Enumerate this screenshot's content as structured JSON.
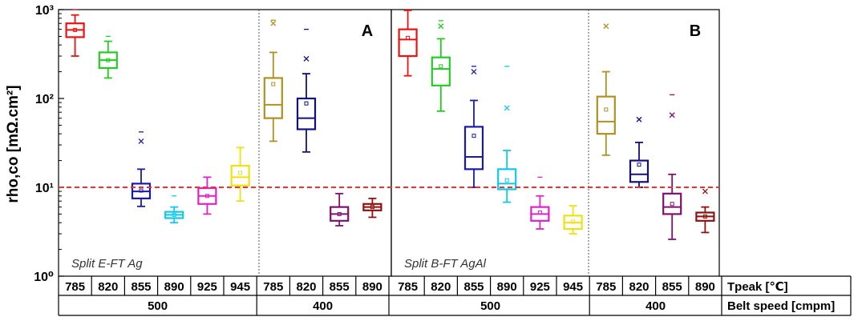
{
  "chart_data": {
    "type": "box",
    "ylabel": "rho,co [mΩ.cm²]",
    "yscale": "log",
    "ylim": [
      1,
      1000
    ],
    "y_ticks": [
      {
        "value": 1,
        "label": "10⁰"
      },
      {
        "value": 10,
        "label": "10¹"
      },
      {
        "value": 100,
        "label": "10²"
      },
      {
        "value": 1000,
        "label": "10³"
      }
    ],
    "reference_line": {
      "value": 10,
      "color": "#ff2a2a",
      "style": "dashed"
    },
    "row_labels": {
      "tpeak": "Tpeak [℃]",
      "belt_speed": "Belt speed [cmpm]"
    },
    "panels": [
      {
        "id": "A",
        "tag": "A",
        "split_label": "Split E-FT Ag",
        "belt_speed_groups": [
          {
            "label": "500",
            "count": 6
          },
          {
            "label": "400",
            "count": 4
          }
        ],
        "boxes": [
          {
            "tpeak": "785",
            "color": "#ee1111",
            "min": 300,
            "q1": 490,
            "median": 590,
            "q3": 700,
            "max": 870,
            "mean": 590,
            "outliers_x": [],
            "outliers_dash": [
              1000
            ]
          },
          {
            "tpeak": "820",
            "color": "#22cc22",
            "min": 170,
            "q1": 220,
            "median": 270,
            "q3": 330,
            "max": 440,
            "mean": 270,
            "outliers_x": [],
            "outliers_dash": [
              500
            ]
          },
          {
            "tpeak": "855",
            "color": "#1a1aaa",
            "min": 6.1,
            "q1": 7.5,
            "median": 9.0,
            "q3": 11.0,
            "max": 16.0,
            "mean": 9.2,
            "outliers_x": [
              33
            ],
            "outliers_dash": [
              42
            ]
          },
          {
            "tpeak": "890",
            "color": "#11c8e8",
            "min": 4.0,
            "q1": 4.5,
            "median": 4.9,
            "q3": 5.3,
            "max": 6.0,
            "mean": 4.9,
            "outliers_x": [],
            "outliers_dash": [
              8.0
            ]
          },
          {
            "tpeak": "925",
            "color": "#e020c8",
            "min": 5.0,
            "q1": 6.5,
            "median": 8.0,
            "q3": 9.8,
            "max": 13.0,
            "mean": 8.0,
            "outliers_x": [],
            "outliers_dash": []
          },
          {
            "tpeak": "945",
            "color": "#f0e010",
            "min": 7.0,
            "q1": 10.5,
            "median": 13.0,
            "q3": 17.5,
            "max": 28.0,
            "mean": 14.5,
            "outliers_x": [],
            "outliers_dash": []
          },
          {
            "tpeak": "785",
            "color": "#b09020",
            "min": 33,
            "q1": 60,
            "median": 85,
            "q3": 170,
            "max": 330,
            "mean": 145,
            "outliers_x": [
              700
            ],
            "outliers_dash": [
              760
            ]
          },
          {
            "tpeak": "820",
            "color": "#101080",
            "min": 25,
            "q1": 45,
            "median": 60,
            "q3": 100,
            "max": 190,
            "mean": 88,
            "outliers_x": [
              280
            ],
            "outliers_dash": [
              600
            ]
          },
          {
            "tpeak": "855",
            "color": "#801070",
            "min": 3.7,
            "q1": 4.2,
            "median": 5.0,
            "q3": 6.0,
            "max": 8.5,
            "mean": 5.0,
            "outliers_x": [],
            "outliers_dash": []
          },
          {
            "tpeak": "890",
            "color": "#901010",
            "min": 4.6,
            "q1": 5.5,
            "median": 6.0,
            "q3": 6.5,
            "max": 7.5,
            "mean": 6.0,
            "outliers_x": [],
            "outliers_dash": []
          }
        ]
      },
      {
        "id": "B",
        "tag": "B",
        "split_label": "Split B-FT AgAl",
        "belt_speed_groups": [
          {
            "label": "500",
            "count": 6
          },
          {
            "label": "400",
            "count": 4
          }
        ],
        "boxes": [
          {
            "tpeak": "785",
            "color": "#ee1111",
            "min": 180,
            "q1": 300,
            "median": 460,
            "q3": 600,
            "max": 980,
            "mean": 480,
            "outliers_x": [],
            "outliers_dash": []
          },
          {
            "tpeak": "820",
            "color": "#22cc22",
            "min": 72,
            "q1": 140,
            "median": 215,
            "q3": 290,
            "max": 470,
            "mean": 230,
            "outliers_x": [
              650
            ],
            "outliers_dash": [
              750
            ]
          },
          {
            "tpeak": "855",
            "color": "#1a1aaa",
            "min": 10,
            "q1": 16,
            "median": 22,
            "q3": 48,
            "max": 95,
            "mean": 38,
            "outliers_x": [
              200
            ],
            "outliers_dash": [
              230
            ]
          },
          {
            "tpeak": "890",
            "color": "#11c8e8",
            "min": 6.8,
            "q1": 9.5,
            "median": 11.0,
            "q3": 16.0,
            "max": 26.0,
            "mean": 12.0,
            "outliers_x": [
              78
            ],
            "outliers_dash": [
              230
            ]
          },
          {
            "tpeak": "925",
            "color": "#e020c8",
            "min": 3.4,
            "q1": 4.2,
            "median": 5.0,
            "q3": 6.0,
            "max": 8.0,
            "mean": 5.2,
            "outliers_x": [],
            "outliers_dash": [
              13
            ]
          },
          {
            "tpeak": "945",
            "color": "#f0e010",
            "min": 3.0,
            "q1": 3.4,
            "median": 4.0,
            "q3": 4.8,
            "max": 6.2,
            "mean": 4.1,
            "outliers_x": [],
            "outliers_dash": []
          },
          {
            "tpeak": "785",
            "color": "#b09020",
            "min": 23,
            "q1": 40,
            "median": 55,
            "q3": 105,
            "max": 200,
            "mean": 75,
            "outliers_x": [
              650
            ],
            "outliers_dash": []
          },
          {
            "tpeak": "820",
            "color": "#101080",
            "min": 10,
            "q1": 11.5,
            "median": 14,
            "q3": 20,
            "max": 32,
            "mean": 18,
            "outliers_x": [
              58
            ],
            "outliers_dash": []
          },
          {
            "tpeak": "855",
            "color": "#801070",
            "min": 2.6,
            "q1": 5.0,
            "median": 6.0,
            "q3": 8.5,
            "max": 14,
            "mean": 6.5,
            "outliers_x": [
              65
            ],
            "outliers_dash": [
              110
            ]
          },
          {
            "tpeak": "890",
            "color": "#901010",
            "min": 3.1,
            "q1": 4.2,
            "median": 4.7,
            "q3": 5.2,
            "max": 6.0,
            "mean": 4.7,
            "outliers_x": [
              9.0
            ],
            "outliers_dash": []
          }
        ]
      }
    ]
  }
}
